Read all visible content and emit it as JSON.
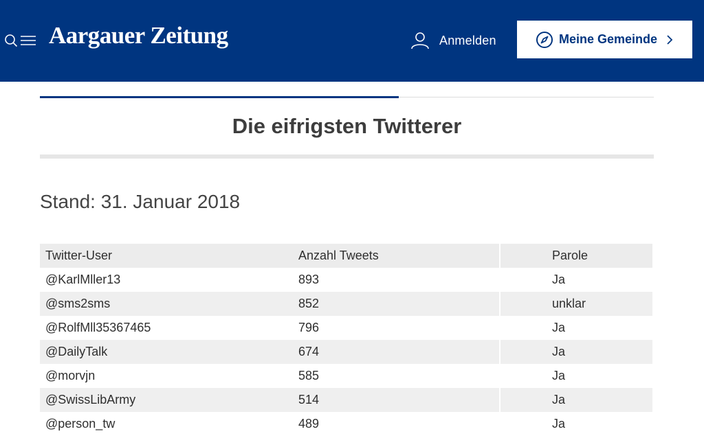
{
  "header": {
    "logo": "Aargauer Zeitung",
    "login_label": "Anmelden",
    "gemeinde_label": "Meine Gemeinde",
    "background_color": "#003580",
    "icons": [
      "search-icon",
      "menu-icon",
      "user-icon",
      "compass-icon",
      "chevron-right-icon"
    ]
  },
  "article": {
    "title": "Die eifrigsten Twitterer",
    "stand": "Stand: 31. Januar 2018"
  },
  "table": {
    "headers": [
      "Twitter-User",
      "Anzahl Tweets",
      "",
      "Parole"
    ],
    "rows": [
      [
        "@KarlMller13",
        "893",
        "",
        "Ja"
      ],
      [
        "@sms2sms",
        "852",
        "",
        "unklar"
      ],
      [
        "@RolfMll35367465",
        "796",
        "",
        "Ja"
      ],
      [
        "@DailyTalk",
        "674",
        "",
        "Ja"
      ],
      [
        "@morvjn",
        "585",
        "",
        "Ja"
      ],
      [
        "@SwissLibArmy",
        "514",
        "",
        "Ja"
      ],
      [
        "@person_tw",
        "489",
        "",
        "Ja"
      ]
    ]
  }
}
